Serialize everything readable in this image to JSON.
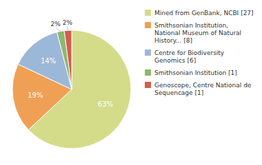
{
  "chart_data": {
    "type": "pie",
    "categories": [
      "Mined from GenBank, NCBI [27]",
      "Smithsonian Institution,\nNational Museum of Natural\nHistory... [8]",
      "Centre for Biodiversity\nGenomics [6]",
      "Smithsonian Institution [1]",
      "Genoscope, Centre National de\nSequencage [1]"
    ],
    "values": [
      63,
      19,
      14,
      2,
      2
    ],
    "value_labels": [
      "63%",
      "19%",
      "14%",
      "2%",
      "2%"
    ],
    "colors": [
      "#d4dc8a",
      "#f0a054",
      "#9cb8d8",
      "#8db870",
      "#d45c50"
    ],
    "legend": "right"
  }
}
